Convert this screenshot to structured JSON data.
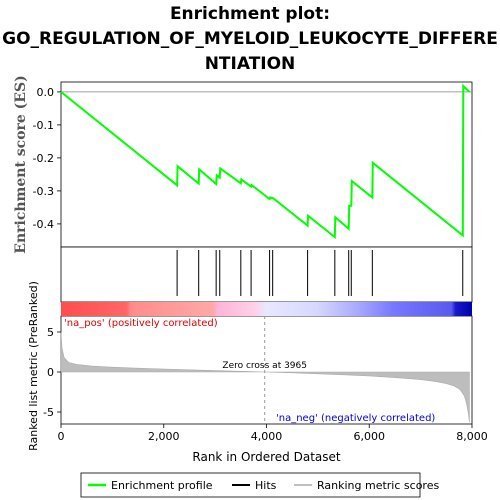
{
  "chart_data": {
    "type": "line",
    "title_lines": [
      "Enrichment plot:",
      "GO_REGULATION_OF_MYELOID_LEUKOCYTE_DIFFERE",
      "NTIATION"
    ],
    "top_panel": {
      "ylabel": "Enrichment score (ES)",
      "yticks": [
        "0.0",
        "-0.1",
        "-0.2",
        "-0.3",
        "-0.4"
      ],
      "ylim": [
        -0.47,
        0.03
      ],
      "series": [
        {
          "name": "Enrichment profile",
          "color": "#00ff00",
          "x": [
            0,
            2260,
            2270,
            2680,
            2690,
            3020,
            3030,
            3090,
            3100,
            3500,
            3510,
            3700,
            3710,
            4060,
            4070,
            4120,
            4130,
            4800,
            4810,
            5330,
            5340,
            5600,
            5610,
            5650,
            5660,
            6060,
            6070,
            7820,
            7830,
            7950
          ],
          "y": [
            0.0,
            -0.283,
            -0.225,
            -0.278,
            -0.235,
            -0.279,
            -0.253,
            -0.26,
            -0.232,
            -0.277,
            -0.265,
            -0.287,
            -0.282,
            -0.325,
            -0.32,
            -0.322,
            -0.322,
            -0.405,
            -0.375,
            -0.44,
            -0.38,
            -0.415,
            -0.345,
            -0.345,
            -0.27,
            -0.32,
            -0.215,
            -0.435,
            0.018,
            0.0
          ]
        }
      ]
    },
    "hits": [
      2260,
      2680,
      3020,
      3090,
      3500,
      3700,
      4060,
      4120,
      4800,
      5330,
      5600,
      5650,
      6060,
      7820
    ],
    "gradient_labels": {
      "pos": "'na_pos' (positively correlated)",
      "neg": "'na_neg' (negatively correlated)"
    },
    "bottom_panel": {
      "ylabel": "Ranked list metric (PreRanked)",
      "yticks": [
        "5",
        "0",
        "-5"
      ],
      "ylim": [
        -6.5,
        7
      ],
      "zero_cross_label": "Zero cross at 3965",
      "zero_cross": 3965,
      "metric_profile": {
        "x": [
          0,
          20,
          60,
          150,
          300,
          600,
          1000,
          1500,
          2000,
          2500,
          3000,
          3500,
          3965,
          4500,
          5000,
          5500,
          6000,
          6500,
          7000,
          7300,
          7500,
          7650,
          7750,
          7800,
          7850,
          7880,
          7900,
          7930,
          7950
        ],
        "y": [
          5.0,
          3.0,
          1.8,
          1.2,
          0.95,
          0.75,
          0.6,
          0.48,
          0.38,
          0.28,
          0.18,
          0.09,
          0.0,
          -0.1,
          -0.22,
          -0.35,
          -0.5,
          -0.7,
          -0.95,
          -1.2,
          -1.45,
          -1.75,
          -2.1,
          -2.5,
          -3.0,
          -3.6,
          -4.2,
          -5.2,
          -6.3
        ]
      }
    },
    "xlabel": "Rank in Ordered Dataset",
    "xticks": [
      "0",
      "2,000",
      "4,000",
      "6,000",
      "8,000"
    ],
    "xlim": [
      0,
      8000
    ],
    "legend": {
      "position": "bottom",
      "items": [
        {
          "label": "Enrichment profile",
          "color": "#00ff00"
        },
        {
          "label": "Hits",
          "color": "#000000"
        },
        {
          "label": "Ranking metric scores",
          "color": "#c0c0c0"
        }
      ]
    }
  }
}
